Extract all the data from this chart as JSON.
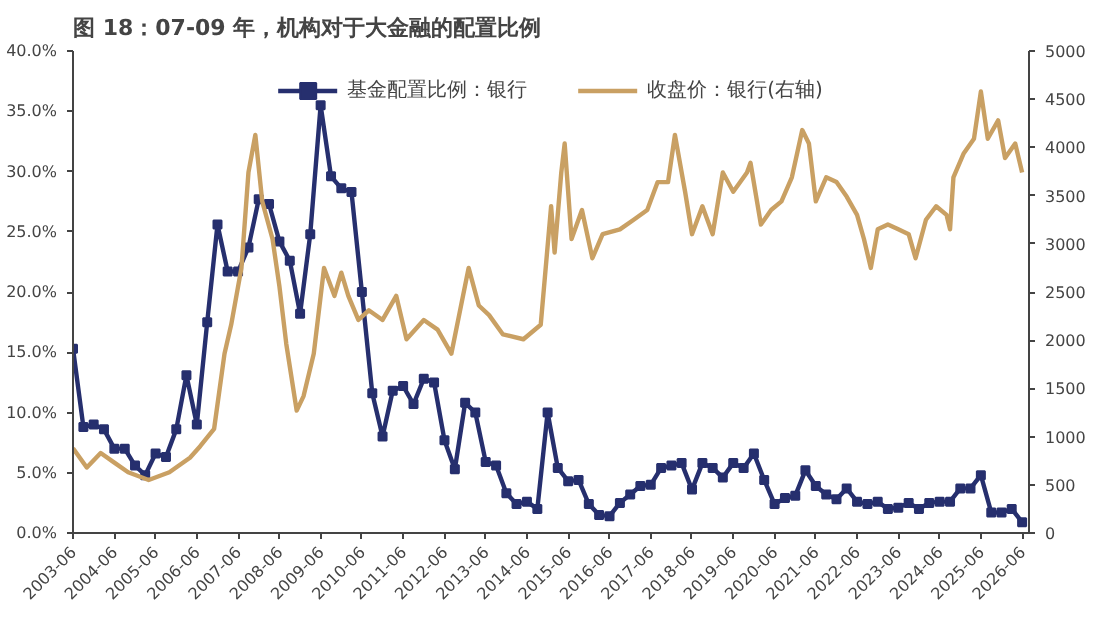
{
  "chart_data": {
    "type": "line",
    "title": "图 18：07-09 年，机构对于大金融的配置比例",
    "legend": "top",
    "grid": false,
    "line_style": "solid",
    "xlim": [
      "2003-06",
      "2026-08"
    ],
    "xticks": [
      "2003-06",
      "2004-06",
      "2005-06",
      "2006-06",
      "2007-06",
      "2008-06",
      "2009-06",
      "2010-06",
      "2011-06",
      "2012-06",
      "2013-06",
      "2014-06",
      "2015-06",
      "2016-06",
      "2017-06",
      "2018-06",
      "2019-06",
      "2020-06",
      "2021-06",
      "2022-06",
      "2023-06",
      "2024-06",
      "2025-06",
      "2026-06"
    ],
    "ylim": [
      0,
      40
    ],
    "yticks": [
      {
        "value": 0,
        "label": "0.0%"
      },
      {
        "value": 5,
        "label": "5.0%"
      },
      {
        "value": 10,
        "label": "10.0%"
      },
      {
        "value": 15,
        "label": "15.0%"
      },
      {
        "value": 20,
        "label": "20.0%"
      },
      {
        "value": 25,
        "label": "25.0%"
      },
      {
        "value": 30,
        "label": "30.0%"
      },
      {
        "value": 35,
        "label": "35.0%"
      },
      {
        "value": 40,
        "label": "40.0%"
      }
    ],
    "y2lim": [
      0,
      5000
    ],
    "y2ticks": [
      0,
      500,
      1000,
      1500,
      2000,
      2500,
      3000,
      3500,
      4000,
      4500,
      5000
    ],
    "series": [
      {
        "name": "基金配置比例：银行",
        "color": "#262f6e",
        "marker": "square",
        "x": [
          "2003-06",
          "2003-09",
          "2003-12",
          "2004-03",
          "2004-06",
          "2004-09",
          "2004-12",
          "2005-03",
          "2005-06",
          "2005-09",
          "2005-12",
          "2006-03",
          "2006-06",
          "2006-09",
          "2006-12",
          "2007-03",
          "2007-06",
          "2007-09",
          "2007-12",
          "2008-03",
          "2008-06",
          "2008-09",
          "2008-12",
          "2009-03",
          "2009-06",
          "2009-09",
          "2009-12",
          "2010-03",
          "2010-06",
          "2010-09",
          "2010-12",
          "2011-03",
          "2011-06",
          "2011-09",
          "2011-12",
          "2012-03",
          "2012-06",
          "2012-09",
          "2012-12",
          "2013-03",
          "2013-06",
          "2013-09",
          "2013-12",
          "2014-03",
          "2014-06",
          "2014-09",
          "2014-12",
          "2015-03",
          "2015-06",
          "2015-09",
          "2015-12",
          "2016-03",
          "2016-06",
          "2016-09",
          "2016-12",
          "2017-03",
          "2017-06",
          "2017-09",
          "2017-12",
          "2018-03",
          "2018-06",
          "2018-09",
          "2018-12",
          "2019-03",
          "2019-06",
          "2019-09",
          "2019-12",
          "2020-03",
          "2020-06",
          "2020-09",
          "2020-12",
          "2021-03",
          "2021-06",
          "2021-09",
          "2021-12",
          "2022-03",
          "2022-06",
          "2022-09",
          "2022-12",
          "2023-03",
          "2023-06",
          "2023-09",
          "2023-12",
          "2024-03",
          "2024-06",
          "2024-09",
          "2024-12",
          "2025-03",
          "2025-06",
          "2025-09",
          "2025-12",
          "2026-03",
          "2026-06"
        ],
        "values": [
          15.3,
          8.8,
          9.0,
          8.6,
          7.0,
          7.0,
          5.6,
          4.8,
          6.6,
          6.3,
          8.6,
          13.1,
          9.0,
          17.5,
          25.6,
          21.7,
          21.7,
          23.7,
          27.7,
          27.3,
          24.2,
          22.6,
          18.2,
          24.8,
          35.5,
          29.6,
          28.6,
          28.3,
          20.0,
          11.6,
          8.0,
          11.8,
          12.2,
          10.7,
          12.8,
          12.5,
          7.7,
          5.3,
          10.8,
          10.0,
          5.9,
          5.6,
          3.3,
          2.4,
          2.6,
          2.0,
          10.0,
          5.4,
          4.3,
          4.4,
          2.4,
          1.5,
          1.4,
          2.5,
          3.2,
          3.9,
          4.0,
          5.4,
          5.6,
          5.8,
          3.6,
          5.8,
          5.4,
          4.6,
          5.8,
          5.4,
          6.6,
          4.4,
          2.4,
          2.9,
          3.1,
          5.2,
          3.9,
          3.2,
          2.8,
          3.7,
          2.6,
          2.4,
          2.6,
          2.0,
          2.1,
          2.5,
          2.0,
          2.5,
          2.6,
          2.6,
          3.7,
          3.7,
          4.8,
          1.7,
          1.7,
          2.0,
          0.9
        ]
      },
      {
        "name": "收盘价：银行(右轴)",
        "color": "#c9a063",
        "axis": "y2",
        "x": [
          "2003-06",
          "2003-10",
          "2004-02",
          "2004-06",
          "2004-10",
          "2005-04",
          "2005-10",
          "2006-04",
          "2006-07",
          "2006-11",
          "2007-02",
          "2007-04",
          "2007-07",
          "2007-09",
          "2007-11",
          "2008-01",
          "2008-04",
          "2008-06",
          "2008-08",
          "2008-11",
          "2009-01",
          "2009-04",
          "2009-07",
          "2009-10",
          "2009-12",
          "2010-02",
          "2010-05",
          "2010-08",
          "2010-12",
          "2011-04",
          "2011-07",
          "2011-12",
          "2012-04",
          "2012-08",
          "2013-01",
          "2013-04",
          "2013-07",
          "2013-11",
          "2014-05",
          "2014-10",
          "2015-01",
          "2015-02",
          "2015-04",
          "2015-05",
          "2015-07",
          "2015-10",
          "2016-01",
          "2016-04",
          "2016-09",
          "2017-01",
          "2017-05",
          "2017-08",
          "2017-11",
          "2018-01",
          "2018-04",
          "2018-06",
          "2018-09",
          "2018-12",
          "2019-03",
          "2019-06",
          "2019-10",
          "2019-11",
          "2020-02",
          "2020-05",
          "2020-08",
          "2020-11",
          "2021-02",
          "2021-04",
          "2021-06",
          "2021-09",
          "2021-12",
          "2022-03",
          "2022-06",
          "2022-08",
          "2022-10",
          "2022-12",
          "2023-03",
          "2023-06",
          "2023-09",
          "2023-11",
          "2024-02",
          "2024-05",
          "2024-08",
          "2024-09",
          "2024-10",
          "2025-01",
          "2025-04",
          "2025-06",
          "2025-08",
          "2025-11",
          "2026-01",
          "2026-04",
          "2026-06"
        ],
        "values": [
          880,
          680,
          830,
          730,
          630,
          550,
          630,
          780,
          900,
          1080,
          1860,
          2160,
          2750,
          3740,
          4130,
          3440,
          3050,
          2560,
          1960,
          1270,
          1420,
          1860,
          2750,
          2460,
          2700,
          2460,
          2210,
          2310,
          2210,
          2460,
          2010,
          2210,
          2110,
          1860,
          2750,
          2360,
          2260,
          2060,
          2010,
          2160,
          3390,
          2910,
          3740,
          4040,
          3050,
          3350,
          2850,
          3100,
          3150,
          3250,
          3350,
          3640,
          3640,
          4130,
          3540,
          3100,
          3390,
          3100,
          3740,
          3540,
          3740,
          3840,
          3200,
          3350,
          3440,
          3690,
          4180,
          4040,
          3440,
          3690,
          3640,
          3490,
          3300,
          3050,
          2750,
          3150,
          3200,
          3150,
          3100,
          2850,
          3250,
          3390,
          3300,
          3150,
          3690,
          3940,
          4090,
          4580,
          4090,
          4280,
          3890,
          4040,
          3740
        ]
      }
    ]
  }
}
